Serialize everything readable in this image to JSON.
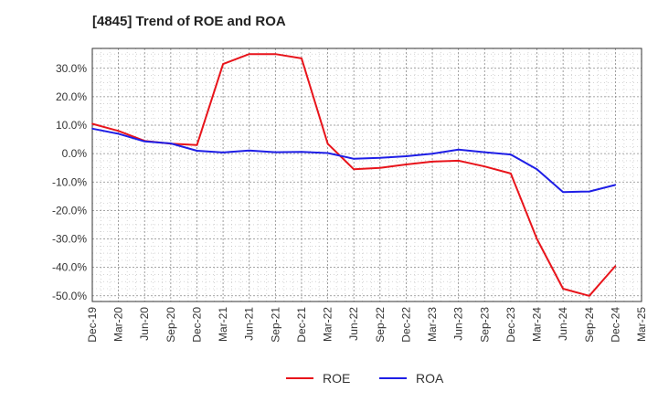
{
  "chart_data": {
    "type": "line",
    "title": "[4845]  Trend of ROE and ROA",
    "xlabel": "",
    "ylabel": "",
    "categories": [
      "Dec-19",
      "Mar-20",
      "Jun-20",
      "Sep-20",
      "Dec-20",
      "Mar-21",
      "Jun-21",
      "Sep-21",
      "Dec-21",
      "Mar-22",
      "Jun-22",
      "Sep-22",
      "Dec-22",
      "Mar-23",
      "Jun-23",
      "Sep-23",
      "Dec-23",
      "Mar-24",
      "Jun-24",
      "Sep-24",
      "Dec-24",
      "Mar-25"
    ],
    "y_ticks": [
      "30.0%",
      "20.0%",
      "10.0%",
      "0.0%",
      "-10.0%",
      "-20.0%",
      "-30.0%",
      "-40.0%",
      "-50.0%"
    ],
    "ylim": [
      -52,
      37
    ],
    "grid": true,
    "legend_position": "bottom-center",
    "series": [
      {
        "name": "ROE",
        "color": "#e8141b",
        "values": [
          10.5,
          8.0,
          4.5,
          3.5,
          3.0,
          31.5,
          35.0,
          35.0,
          33.5,
          3.5,
          -5.5,
          -5.0,
          -3.8,
          -2.8,
          -2.5,
          -4.5,
          -7.0,
          -30.0,
          -47.5,
          -50.0,
          -39.5,
          null
        ]
      },
      {
        "name": "ROA",
        "color": "#1e1ee6",
        "values": [
          8.8,
          7.0,
          4.3,
          3.6,
          1.0,
          0.4,
          1.1,
          0.5,
          0.6,
          0.2,
          -1.8,
          -1.5,
          -0.9,
          0.0,
          1.4,
          0.5,
          -0.3,
          -5.5,
          -13.5,
          -13.3,
          -11.0,
          null
        ]
      }
    ]
  }
}
